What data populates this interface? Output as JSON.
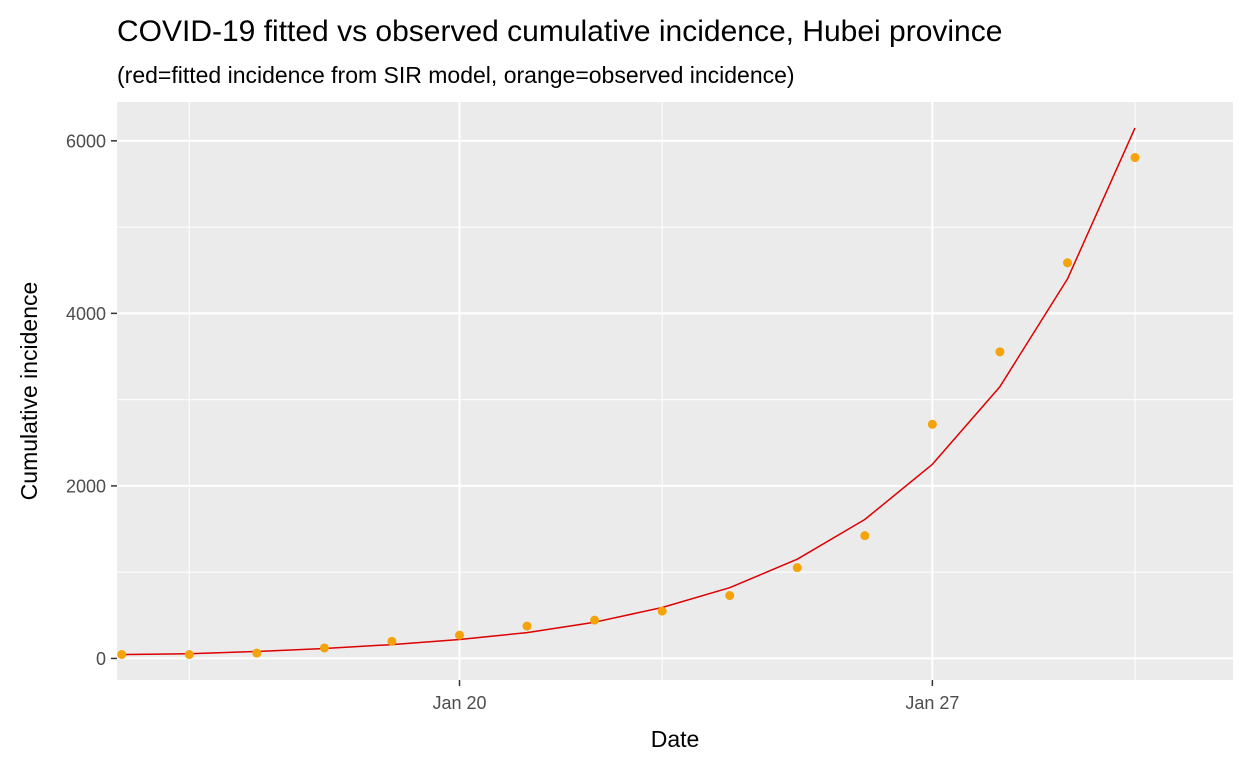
{
  "chart_data": {
    "type": "line",
    "title": "COVID-19 fitted vs observed cumulative incidence, Hubei province",
    "subtitle": "(red=fitted incidence from SIR model, orange=observed incidence)",
    "xlabel": "Date",
    "ylabel": "Cumulative incidence",
    "x": [
      "2020-01-16",
      "2020-01-17",
      "2020-01-18",
      "2020-01-19",
      "2020-01-20",
      "2020-01-21",
      "2020-01-22",
      "2020-01-23",
      "2020-01-24",
      "2020-01-25",
      "2020-01-26",
      "2020-01-27",
      "2020-01-28",
      "2020-01-29",
      "2020-01-30",
      "2020-01-31"
    ],
    "xlim": [
      "2020-01-15",
      "2020-01-31"
    ],
    "ylim": [
      -250,
      6450
    ],
    "x_ticks": [
      {
        "date": "2020-01-20",
        "label": "Jan 20"
      },
      {
        "date": "2020-01-27",
        "label": "Jan 27"
      }
    ],
    "x_minor_ticks": [
      "2020-01-16",
      "2020-01-23",
      "2020-01-30"
    ],
    "y_ticks": [
      0,
      2000,
      4000,
      6000
    ],
    "y_tick_labels": [
      "0",
      "2000",
      "4000",
      "6000"
    ],
    "y_minor_ticks": [
      1000,
      3000,
      5000
    ],
    "grid": true,
    "background": "#ebebeb",
    "series": [
      {
        "type": "line",
        "color": "#dd0000",
        "x": [
          "2020-01-15",
          "2020-01-16",
          "2020-01-17",
          "2020-01-18",
          "2020-01-19",
          "2020-01-20",
          "2020-01-21",
          "2020-01-22",
          "2020-01-23",
          "2020-01-24",
          "2020-01-25",
          "2020-01-26",
          "2020-01-27",
          "2020-01-28",
          "2020-01-29",
          "2020-01-30"
        ],
        "values": [
          45,
          55,
          80,
          115,
          160,
          220,
          300,
          420,
          590,
          820,
          1150,
          1610,
          2250,
          3150,
          4400,
          6150
        ]
      },
      {
        "type": "scatter",
        "color": "#f5a30a",
        "x": [
          "2020-01-15",
          "2020-01-16",
          "2020-01-17",
          "2020-01-18",
          "2020-01-19",
          "2020-01-20",
          "2020-01-21",
          "2020-01-22",
          "2020-01-23",
          "2020-01-24",
          "2020-01-25",
          "2020-01-26",
          "2020-01-27",
          "2020-01-28",
          "2020-01-29",
          "2020-01-30"
        ],
        "values": [
          45,
          45,
          62,
          121,
          198,
          270,
          375,
          444,
          549,
          729,
          1052,
          1423,
          2714,
          3554,
          4586,
          5806
        ]
      }
    ]
  }
}
